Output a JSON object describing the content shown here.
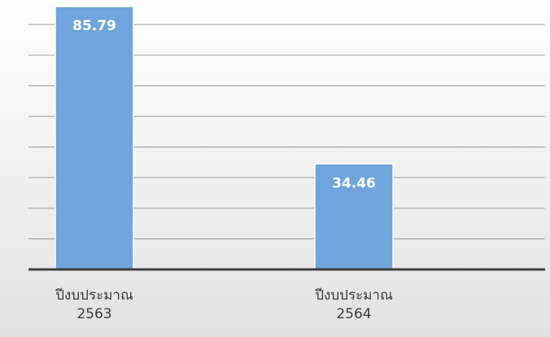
{
  "chart_data": {
    "type": "bar",
    "categories": [
      {
        "line1": "ปีงบประมาณ",
        "line2": "2563"
      },
      {
        "line1": "ปีงบประมาณ",
        "line2": "2564"
      }
    ],
    "values": [
      85.79,
      34.46
    ],
    "value_labels": [
      "85.79",
      "34.46"
    ],
    "ylim": [
      0,
      90
    ],
    "grid": true,
    "colors": {
      "bar": "#6fa4dc",
      "bar_edge": "#ffffff",
      "grid": "#a6a6a6",
      "axis": "#3f3f3f",
      "value_label": "#ffffff"
    }
  }
}
